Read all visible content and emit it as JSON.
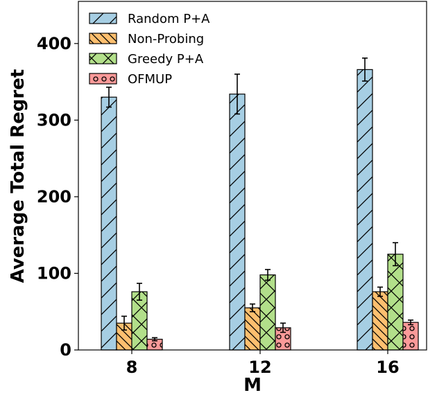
{
  "chart_data": {
    "type": "bar",
    "title": "",
    "xlabel": "M",
    "ylabel": "Average Total Regret",
    "categories": [
      "8",
      "12",
      "16"
    ],
    "ylim": [
      0,
      455
    ],
    "yticks": [
      0,
      100,
      200,
      300,
      400
    ],
    "grid": false,
    "legend_position": "top-left",
    "series": [
      {
        "name": "Random P+A",
        "color": "#a6cee3",
        "hatch": "diagonal",
        "values": [
          330,
          334,
          366
        ],
        "errors": [
          13,
          26,
          15
        ]
      },
      {
        "name": "Non-Probing",
        "color": "#fdbf6f",
        "hatch": "back-diagonal",
        "values": [
          35,
          55,
          76
        ],
        "errors": [
          9,
          5,
          6
        ]
      },
      {
        "name": "Greedy P+A",
        "color": "#b2df8a",
        "hatch": "cross",
        "values": [
          76,
          98,
          125
        ],
        "errors": [
          11,
          7,
          15
        ]
      },
      {
        "name": "OFMUP",
        "color": "#fb9a99",
        "hatch": "circles",
        "values": [
          14,
          29,
          36
        ],
        "errors": [
          2,
          6,
          3
        ]
      }
    ]
  }
}
